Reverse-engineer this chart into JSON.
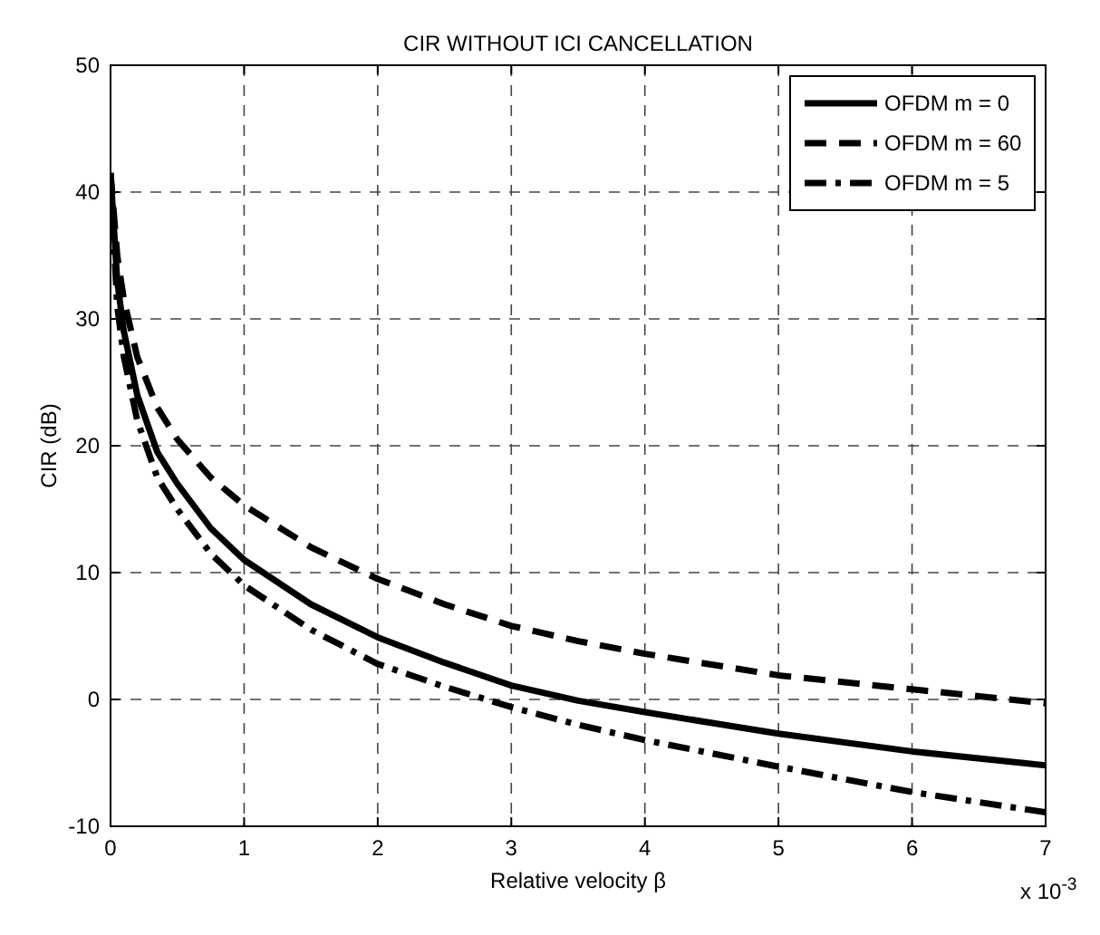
{
  "chart_data": {
    "type": "line",
    "title": "CIR WITHOUT ICI CANCELLATION",
    "xlabel": "Relative velocity β",
    "ylabel": "CIR (dB)",
    "annotations": [
      "x 10$^{-3}$"
    ],
    "x": [
      0,
      0.05,
      0.1,
      0.2,
      0.35,
      0.5,
      0.75,
      1,
      1.5,
      2,
      2.5,
      3,
      3.5,
      4,
      5,
      6,
      7
    ],
    "xlim": [
      0,
      7
    ],
    "xticks": [
      0,
      1,
      2,
      3,
      4,
      5,
      6,
      7
    ],
    "ylim": [
      -10,
      50
    ],
    "yticks": [
      -10,
      0,
      10,
      20,
      30,
      40,
      50
    ],
    "grid": true,
    "legend": "top right",
    "series": [
      {
        "name": "OFDM m = 0",
        "color": "#000000",
        "line_style": "solid",
        "values": [
          41.5,
          33,
          29,
          24,
          19.5,
          17,
          13.5,
          11,
          7.5,
          4.9,
          2.9,
          1.1,
          -0.1,
          -1.0,
          -2.7,
          -4.1,
          -5.2
        ]
      },
      {
        "name": "OFDM m = 60",
        "color": "#000000",
        "line_style": "dashed",
        "values": [
          41.5,
          35,
          31.5,
          27,
          23,
          20.5,
          17.5,
          15.3,
          12,
          9.5,
          7.5,
          5.8,
          4.6,
          3.6,
          1.9,
          0.8,
          -0.3
        ]
      },
      {
        "name": "OFDM m = 5",
        "color": "#000000",
        "line_style": "dashdot",
        "values": [
          41.5,
          31,
          27,
          22,
          17.5,
          15,
          11.5,
          9,
          5.5,
          2.8,
          1.0,
          -0.6,
          -2.0,
          -3.2,
          -5.3,
          -7.3,
          -8.9
        ]
      }
    ]
  }
}
